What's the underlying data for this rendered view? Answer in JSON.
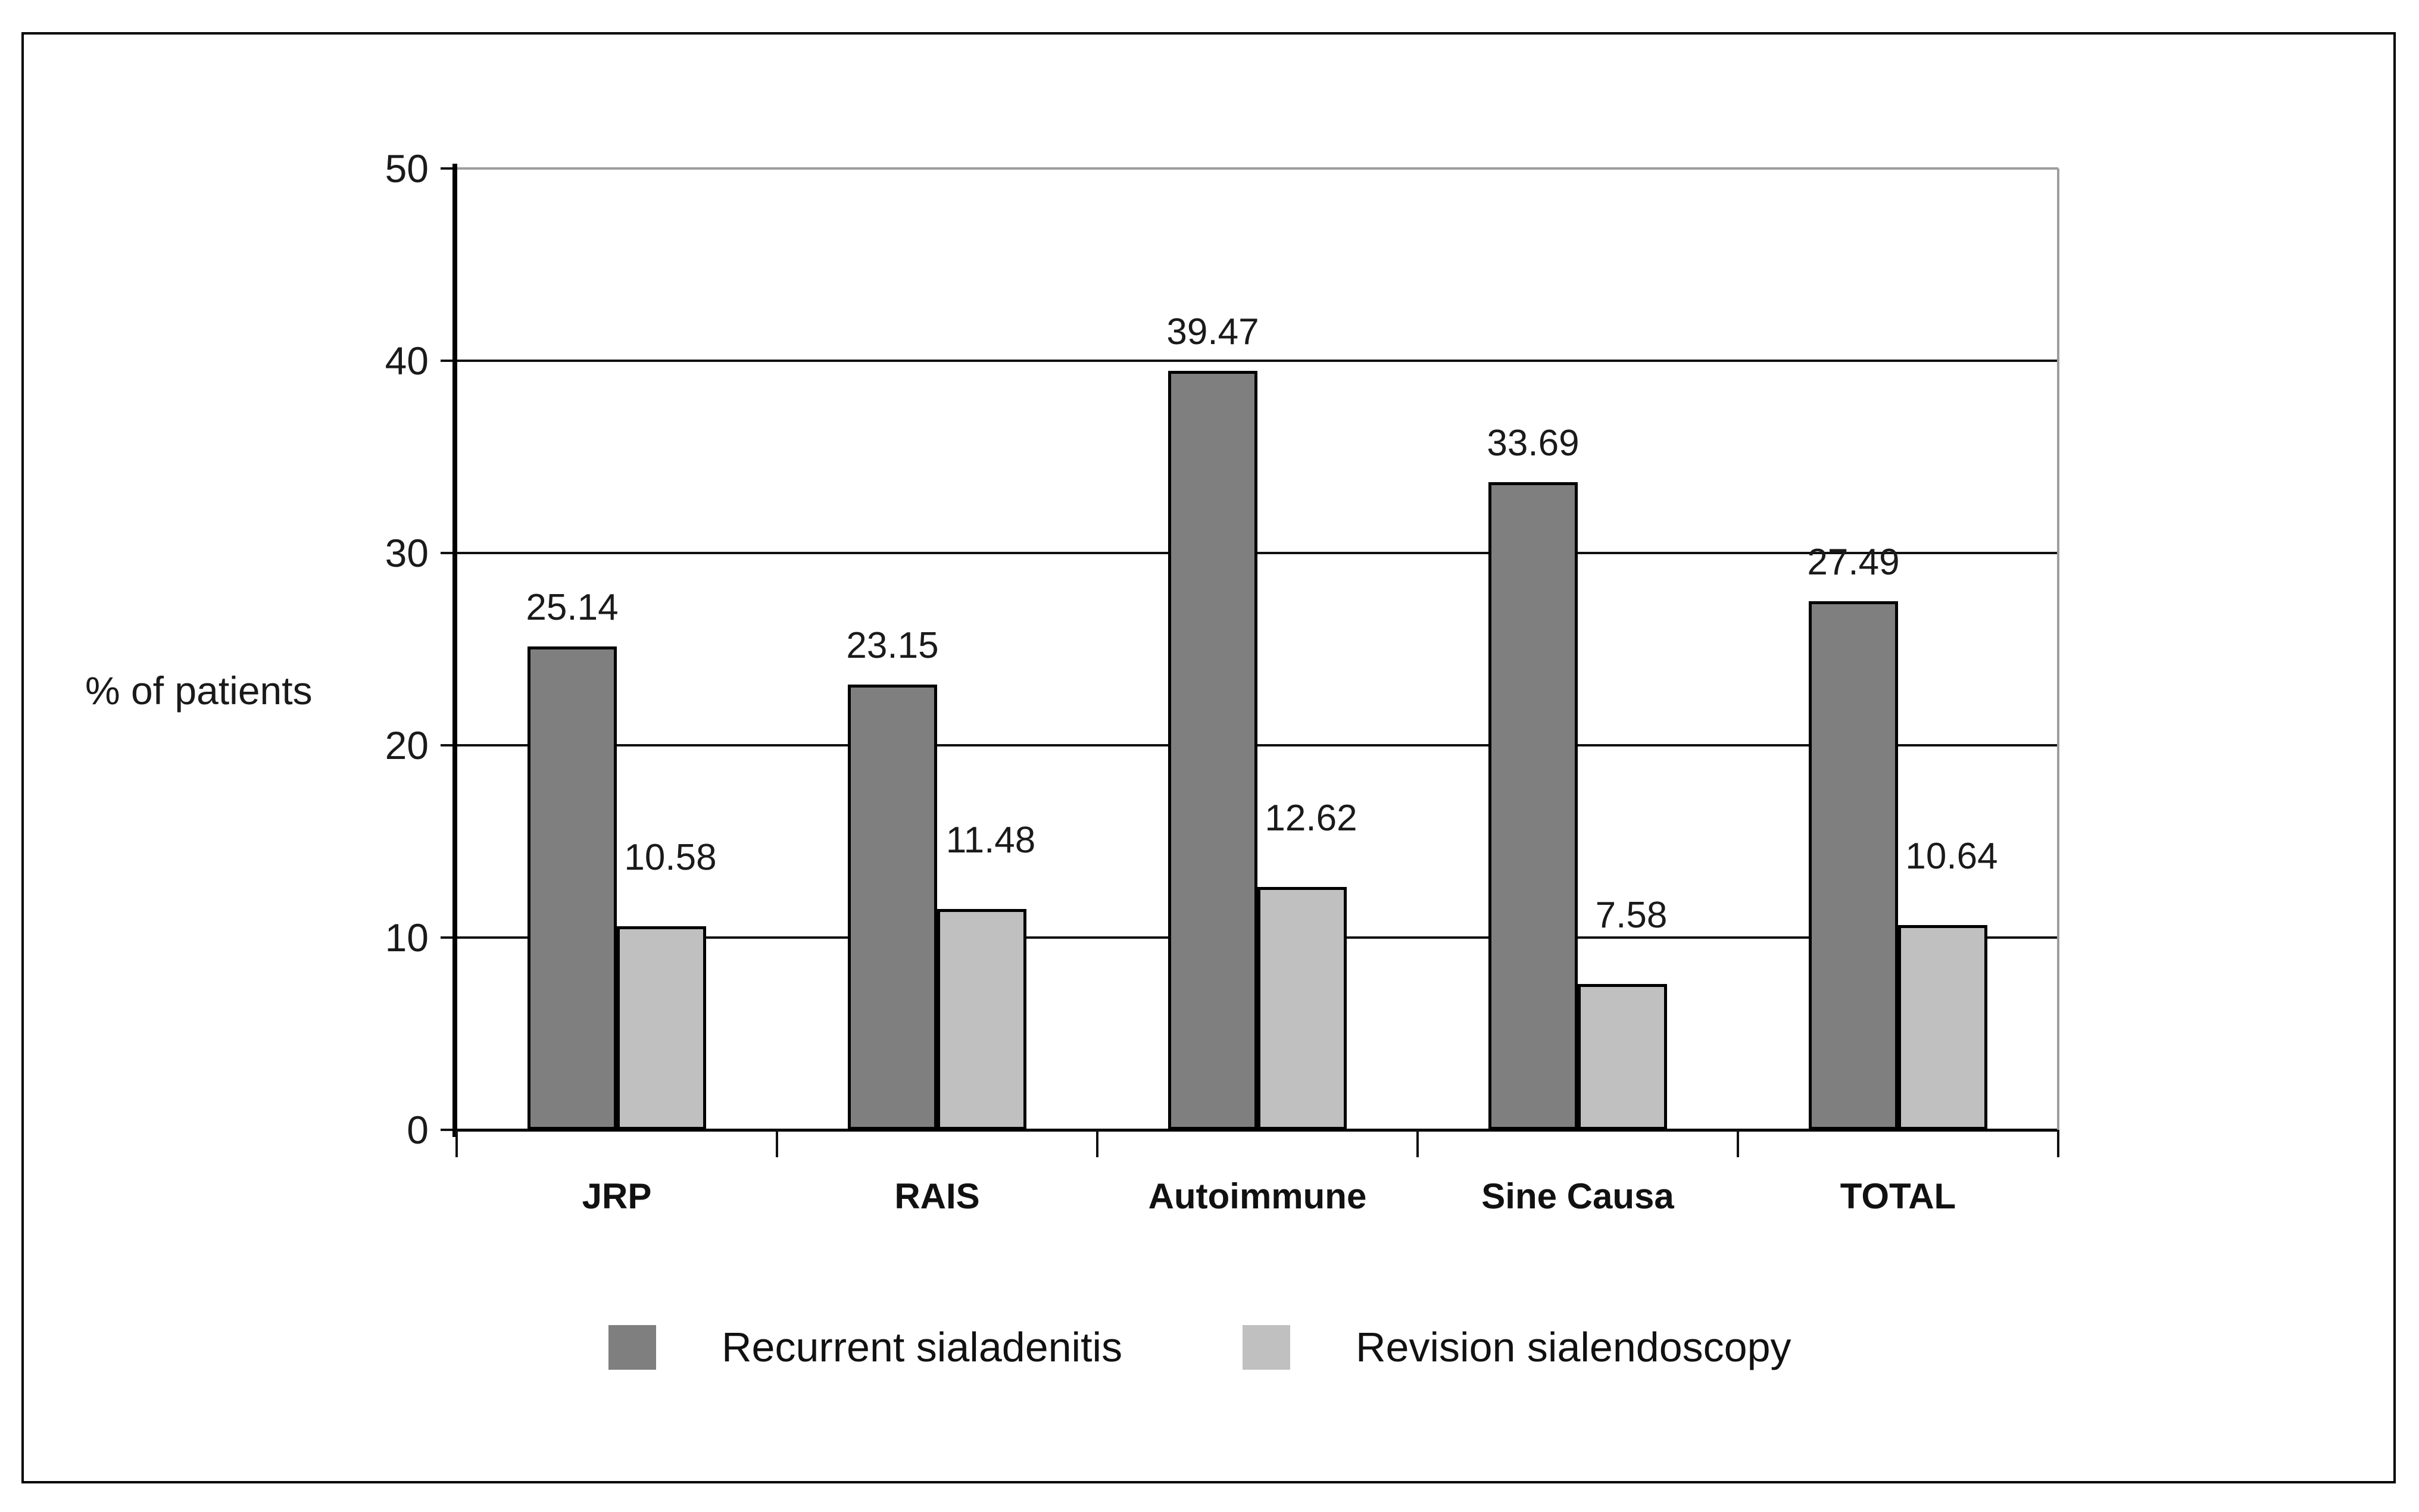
{
  "figure": {
    "ylabel": "% of patients"
  },
  "legend": {
    "items": [
      {
        "label": "Recurrent sialadenitis",
        "color": "#7f7f7f"
      },
      {
        "label": "Revision sialendoscopy",
        "color": "#c0c0c0"
      }
    ]
  },
  "colors": {
    "series_dark": "#7f7f7f",
    "series_light": "#c0c0c0",
    "gridline": "#111111",
    "gridline_top": "#9e9e9e",
    "axis": "#000000",
    "text": "#1a1a1a"
  },
  "chart_data": {
    "type": "bar",
    "title": "",
    "xlabel": "",
    "ylabel": "% of patients",
    "categories": [
      "JRP",
      "RAIS",
      "Autoimmune",
      "Sine Causa",
      "TOTAL"
    ],
    "series": [
      {
        "name": "Recurrent sialadenitis",
        "color": "#7f7f7f",
        "values": [
          25.14,
          23.15,
          39.47,
          33.69,
          27.49
        ]
      },
      {
        "name": "Revision sialendoscopy",
        "color": "#c0c0c0",
        "values": [
          10.58,
          11.48,
          12.62,
          7.58,
          10.64
        ]
      }
    ],
    "ylim": [
      0,
      50
    ],
    "yticks": [
      0,
      10,
      20,
      30,
      40,
      50
    ],
    "grid": true,
    "value_labels": true,
    "legend_position": "bottom"
  }
}
